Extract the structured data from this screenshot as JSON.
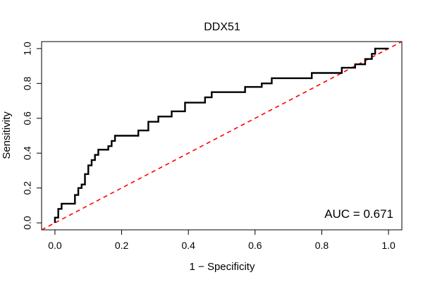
{
  "chart_data": {
    "type": "line",
    "title": "DDX51",
    "xlabel": "1 − Specificity",
    "ylabel": "Sensitivity",
    "xlim": [
      -0.04,
      1.04
    ],
    "ylim": [
      -0.04,
      1.04
    ],
    "x_ticks": [
      0.0,
      0.2,
      0.4,
      0.6,
      0.8,
      1.0
    ],
    "x_tick_labels": [
      "0.0",
      "0.2",
      "0.4",
      "0.6",
      "0.8",
      "1.0"
    ],
    "y_ticks": [
      0.0,
      0.2,
      0.4,
      0.6,
      0.8,
      1.0
    ],
    "y_tick_labels": [
      "0.0",
      "0.2",
      "0.4",
      "0.6",
      "0.8",
      "1.0"
    ],
    "grid": false,
    "annotation": "AUC = 0.671",
    "series": [
      {
        "role": "roc-curve",
        "color": "#000000",
        "style": "solid",
        "points": [
          [
            0.0,
            0.0
          ],
          [
            0.0,
            0.03
          ],
          [
            0.01,
            0.03
          ],
          [
            0.01,
            0.08
          ],
          [
            0.02,
            0.08
          ],
          [
            0.02,
            0.11
          ],
          [
            0.06,
            0.11
          ],
          [
            0.06,
            0.16
          ],
          [
            0.07,
            0.16
          ],
          [
            0.07,
            0.2
          ],
          [
            0.08,
            0.2
          ],
          [
            0.08,
            0.22
          ],
          [
            0.09,
            0.22
          ],
          [
            0.09,
            0.28
          ],
          [
            0.1,
            0.28
          ],
          [
            0.1,
            0.33
          ],
          [
            0.11,
            0.33
          ],
          [
            0.11,
            0.36
          ],
          [
            0.12,
            0.36
          ],
          [
            0.12,
            0.39
          ],
          [
            0.13,
            0.39
          ],
          [
            0.13,
            0.42
          ],
          [
            0.16,
            0.42
          ],
          [
            0.16,
            0.44
          ],
          [
            0.17,
            0.44
          ],
          [
            0.17,
            0.47
          ],
          [
            0.18,
            0.47
          ],
          [
            0.18,
            0.5
          ],
          [
            0.25,
            0.5
          ],
          [
            0.25,
            0.53
          ],
          [
            0.28,
            0.53
          ],
          [
            0.28,
            0.58
          ],
          [
            0.31,
            0.58
          ],
          [
            0.31,
            0.61
          ],
          [
            0.35,
            0.61
          ],
          [
            0.35,
            0.64
          ],
          [
            0.39,
            0.64
          ],
          [
            0.39,
            0.69
          ],
          [
            0.45,
            0.69
          ],
          [
            0.45,
            0.72
          ],
          [
            0.47,
            0.72
          ],
          [
            0.47,
            0.75
          ],
          [
            0.57,
            0.75
          ],
          [
            0.57,
            0.78
          ],
          [
            0.62,
            0.78
          ],
          [
            0.62,
            0.8
          ],
          [
            0.65,
            0.8
          ],
          [
            0.65,
            0.83
          ],
          [
            0.77,
            0.83
          ],
          [
            0.77,
            0.86
          ],
          [
            0.86,
            0.86
          ],
          [
            0.86,
            0.89
          ],
          [
            0.9,
            0.89
          ],
          [
            0.9,
            0.91
          ],
          [
            0.93,
            0.91
          ],
          [
            0.93,
            0.94
          ],
          [
            0.95,
            0.94
          ],
          [
            0.95,
            0.97
          ],
          [
            0.96,
            0.97
          ],
          [
            0.96,
            1.0
          ],
          [
            1.0,
            1.0
          ]
        ]
      },
      {
        "role": "chance-line",
        "color": "#ff0000",
        "style": "dashed",
        "points": [
          [
            -0.04,
            -0.04
          ],
          [
            1.04,
            1.04
          ]
        ]
      }
    ]
  }
}
